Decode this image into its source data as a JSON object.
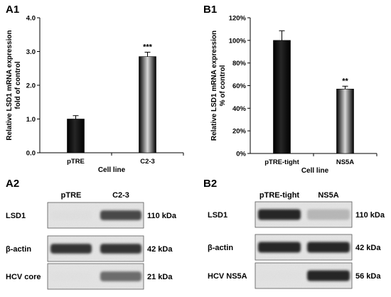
{
  "colors": {
    "bar_dark": "#111111",
    "bar_mid": "#8a8a8a",
    "blot_bg_light": "#e6e6e6",
    "blot_band": "#1e1e1e"
  },
  "chart_data": [
    {
      "panel": "A1",
      "type": "bar",
      "categories": [
        "pTRE",
        "C2-3"
      ],
      "values": [
        1.0,
        2.85
      ],
      "errors": [
        0.1,
        0.13
      ],
      "significance": [
        "",
        "***"
      ],
      "bar_styles": [
        "solid-dark",
        "metallic-gradient"
      ],
      "xlabel": "Cell line",
      "ylabel_lines": [
        "Relative LSD1 mRNA expression",
        "fold of control"
      ],
      "ylim": [
        0,
        4
      ],
      "yticks": [
        "0.0",
        "1.0",
        "2.0",
        "3.0",
        "4.0"
      ],
      "ytick_values": [
        0,
        1,
        2,
        3,
        4
      ],
      "grid": false,
      "legend": "none"
    },
    {
      "panel": "B1",
      "type": "bar",
      "categories": [
        "pTRE-tight",
        "NS5A"
      ],
      "values": [
        100,
        57
      ],
      "errors": [
        8.5,
        2.5
      ],
      "significance": [
        "",
        "**"
      ],
      "bar_styles": [
        "solid-dark",
        "metallic-gradient"
      ],
      "xlabel": "Cell line",
      "ylabel_lines": [
        "Relative LSD1 mRNA expression",
        "% of control"
      ],
      "ylim": [
        0,
        120
      ],
      "yticks": [
        "0%",
        "20%",
        "40%",
        "60%",
        "80%",
        "100%",
        "120%"
      ],
      "ytick_values": [
        0,
        20,
        40,
        60,
        80,
        100,
        120
      ],
      "grid": false,
      "legend": "none"
    }
  ],
  "blots": [
    {
      "panel": "A2",
      "lanes": [
        "pTRE",
        "C2-3"
      ],
      "rows": [
        {
          "name": "LSD1",
          "kda": "110 kDa",
          "intensity": [
            0.1,
            0.85
          ]
        },
        {
          "name": "β-actin",
          "kda": "42 kDa",
          "intensity": [
            0.9,
            0.9
          ]
        },
        {
          "name": "HCV core",
          "kda": "21 kDa",
          "intensity": [
            0.05,
            0.75
          ]
        }
      ]
    },
    {
      "panel": "B2",
      "lanes": [
        "pTRE-tight",
        "NS5A"
      ],
      "rows": [
        {
          "name": "LSD1",
          "kda": "110 kDa",
          "intensity": [
            0.95,
            0.45
          ]
        },
        {
          "name": "β-actin",
          "kda": "42 kDa",
          "intensity": [
            0.95,
            0.95
          ]
        },
        {
          "name": "HCV NS5A",
          "kda": "56 kDa",
          "intensity": [
            0.05,
            0.95
          ]
        }
      ]
    }
  ]
}
